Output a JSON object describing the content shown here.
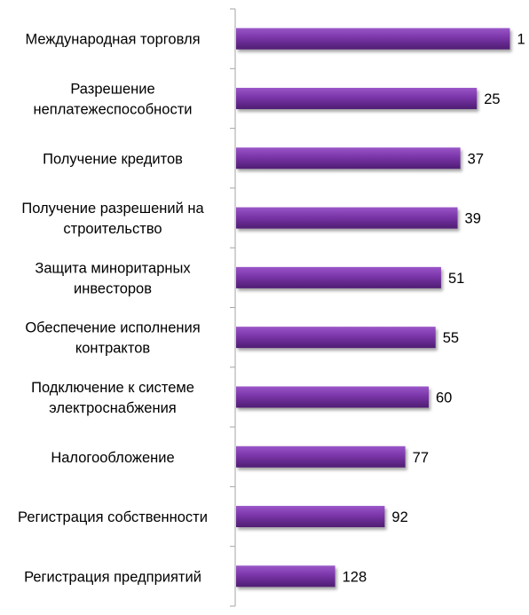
{
  "chart_data": {
    "type": "bar",
    "orientation": "horizontal",
    "categories": [
      "Международная торговля",
      "Разрешение неплатежеспособности",
      "Получение кредитов",
      "Получение разрешений на строительство",
      "Защита миноритарных инвесторов",
      "Обеспечение исполнения контрактов",
      "Подключение к системе электроснабжения",
      "Налогообложение",
      "Регистрация собственности",
      "Регистрация предприятий"
    ],
    "category_lines": [
      [
        "Международная торговля"
      ],
      [
        "Разрешение",
        "неплатежеспособности"
      ],
      [
        "Получение кредитов"
      ],
      [
        "Получение разрешений  на",
        "строительство"
      ],
      [
        "Защита миноритарных",
        "инвесторов"
      ],
      [
        "Обеспечение исполнения",
        "контрактов"
      ],
      [
        "Подключение к системе",
        "электроснабжения"
      ],
      [
        "Налогообложение"
      ],
      [
        "Регистрация собственности"
      ],
      [
        "Регистрация предприятий"
      ]
    ],
    "values": [
      1,
      25,
      37,
      39,
      51,
      55,
      60,
      77,
      92,
      128
    ],
    "value_labels": [
      "1",
      "25",
      "37",
      "39",
      "51",
      "55",
      "60",
      "77",
      "92",
      "128"
    ],
    "axis": "reversed",
    "xlim": [
      0,
      200
    ],
    "grid": false,
    "legend": "none",
    "colors": {
      "bar": "#7a35a8",
      "bar_light": "#9a57c8",
      "bar_dark": "#4e1d72",
      "axis": "#a6a6a6"
    }
  }
}
